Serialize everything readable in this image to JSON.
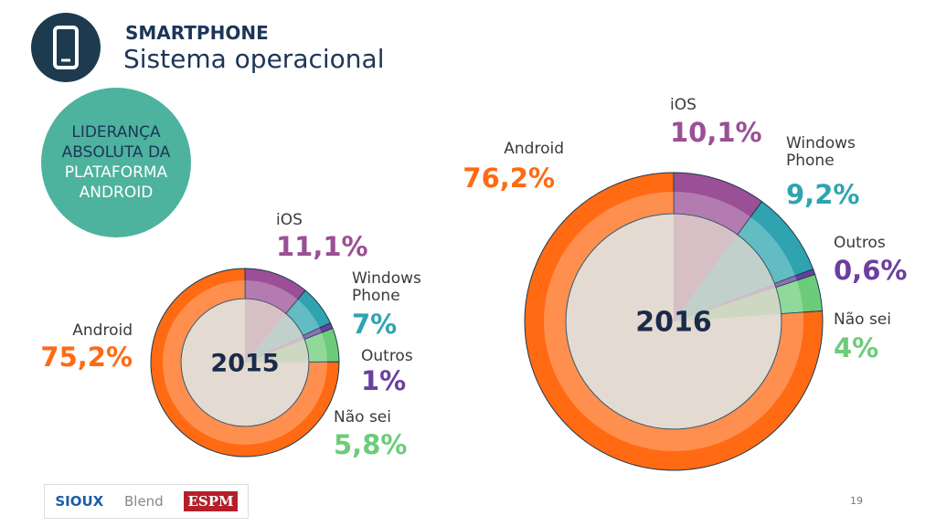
{
  "header": {
    "title": "SMARTPHONE",
    "subtitle": "Sistema operacional"
  },
  "badge": {
    "lines": [
      "LIDERANÇA",
      "ABSOLUTA DA",
      "PLATAFORMA",
      "ANDROID"
    ]
  },
  "chart_data": [
    {
      "type": "pie",
      "title": "2015",
      "categories": [
        "iOS",
        "Windows Phone",
        "Outros",
        "Não sei",
        "Android"
      ],
      "values": [
        11.1,
        7,
        1,
        5.8,
        75.2
      ],
      "value_labels": [
        "11,1%",
        "7%",
        "1%",
        "5,8%",
        "75,2%"
      ],
      "colors": [
        "#9b4f96",
        "#2fa4b0",
        "#6b3fa0",
        "#6dcc7a",
        "#ff6a13"
      ]
    },
    {
      "type": "pie",
      "title": "2016",
      "categories": [
        "iOS",
        "Windows Phone",
        "Outros",
        "Não sei",
        "Android"
      ],
      "values": [
        10.1,
        9.2,
        0.6,
        4,
        76.2
      ],
      "value_labels": [
        "10,1%",
        "9,2%",
        "0,6%",
        "4%",
        "76,2%"
      ],
      "colors": [
        "#9b4f96",
        "#2fa4b0",
        "#6b3fa0",
        "#6dcc7a",
        "#ff6a13"
      ]
    }
  ],
  "footer": {
    "logos": [
      "SIOUX",
      "Blend",
      "ESPM"
    ],
    "page": "19"
  }
}
